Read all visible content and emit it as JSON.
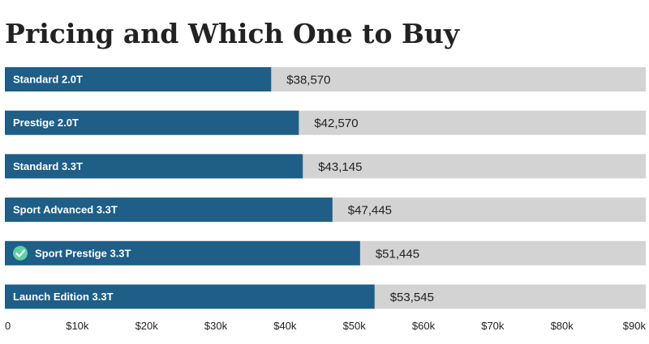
{
  "colors": {
    "bar": "#1e5e87",
    "track": "#d3d3d3",
    "check": "#5fd0a2"
  },
  "chart_data": {
    "type": "bar",
    "orientation": "horizontal",
    "title": "Pricing and Which One to Buy",
    "categories": [
      "Standard 2.0T",
      "Prestige 2.0T",
      "Standard 3.3T",
      "Sport Advanced 3.3T",
      "Sport Prestige 3.3T",
      "Launch Edition 3.3T"
    ],
    "values": [
      38570,
      42570,
      43145,
      47445,
      51445,
      53545
    ],
    "value_labels": [
      "$38,570",
      "$42,570",
      "$43,145",
      "$47,445",
      "$51,445",
      "$53,545"
    ],
    "recommended": "Sport Prestige 3.3T",
    "recommended_icon": "check-circle-icon",
    "xlim": [
      0,
      90000
    ],
    "xticks": [
      0,
      10000,
      20000,
      30000,
      40000,
      50000,
      60000,
      70000,
      80000,
      90000
    ],
    "xtick_labels": [
      "0",
      "$10k",
      "$20k",
      "$30k",
      "$40k",
      "$50k",
      "$60k",
      "$70k",
      "$80k",
      "$90k"
    ],
    "xlabel": "",
    "ylabel": "",
    "grid": false
  }
}
